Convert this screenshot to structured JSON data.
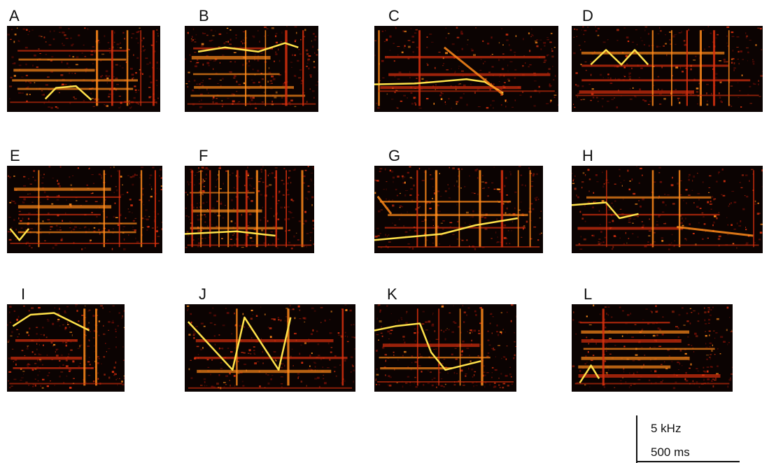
{
  "figure": {
    "panels": [
      {
        "label": "A"
      },
      {
        "label": "B"
      },
      {
        "label": "C"
      },
      {
        "label": "D"
      },
      {
        "label": "E"
      },
      {
        "label": "F"
      },
      {
        "label": "G"
      },
      {
        "label": "H"
      },
      {
        "label": "I"
      },
      {
        "label": "J"
      },
      {
        "label": "K"
      },
      {
        "label": "L"
      }
    ],
    "scale_bar": {
      "frequency_label": "5 kHz",
      "time_label": "500 ms"
    },
    "colors": {
      "background": "#0b0302",
      "low": "#6b0d06",
      "mid": "#d8300e",
      "high": "#ff8a1a",
      "peak": "#ffe24a"
    }
  }
}
